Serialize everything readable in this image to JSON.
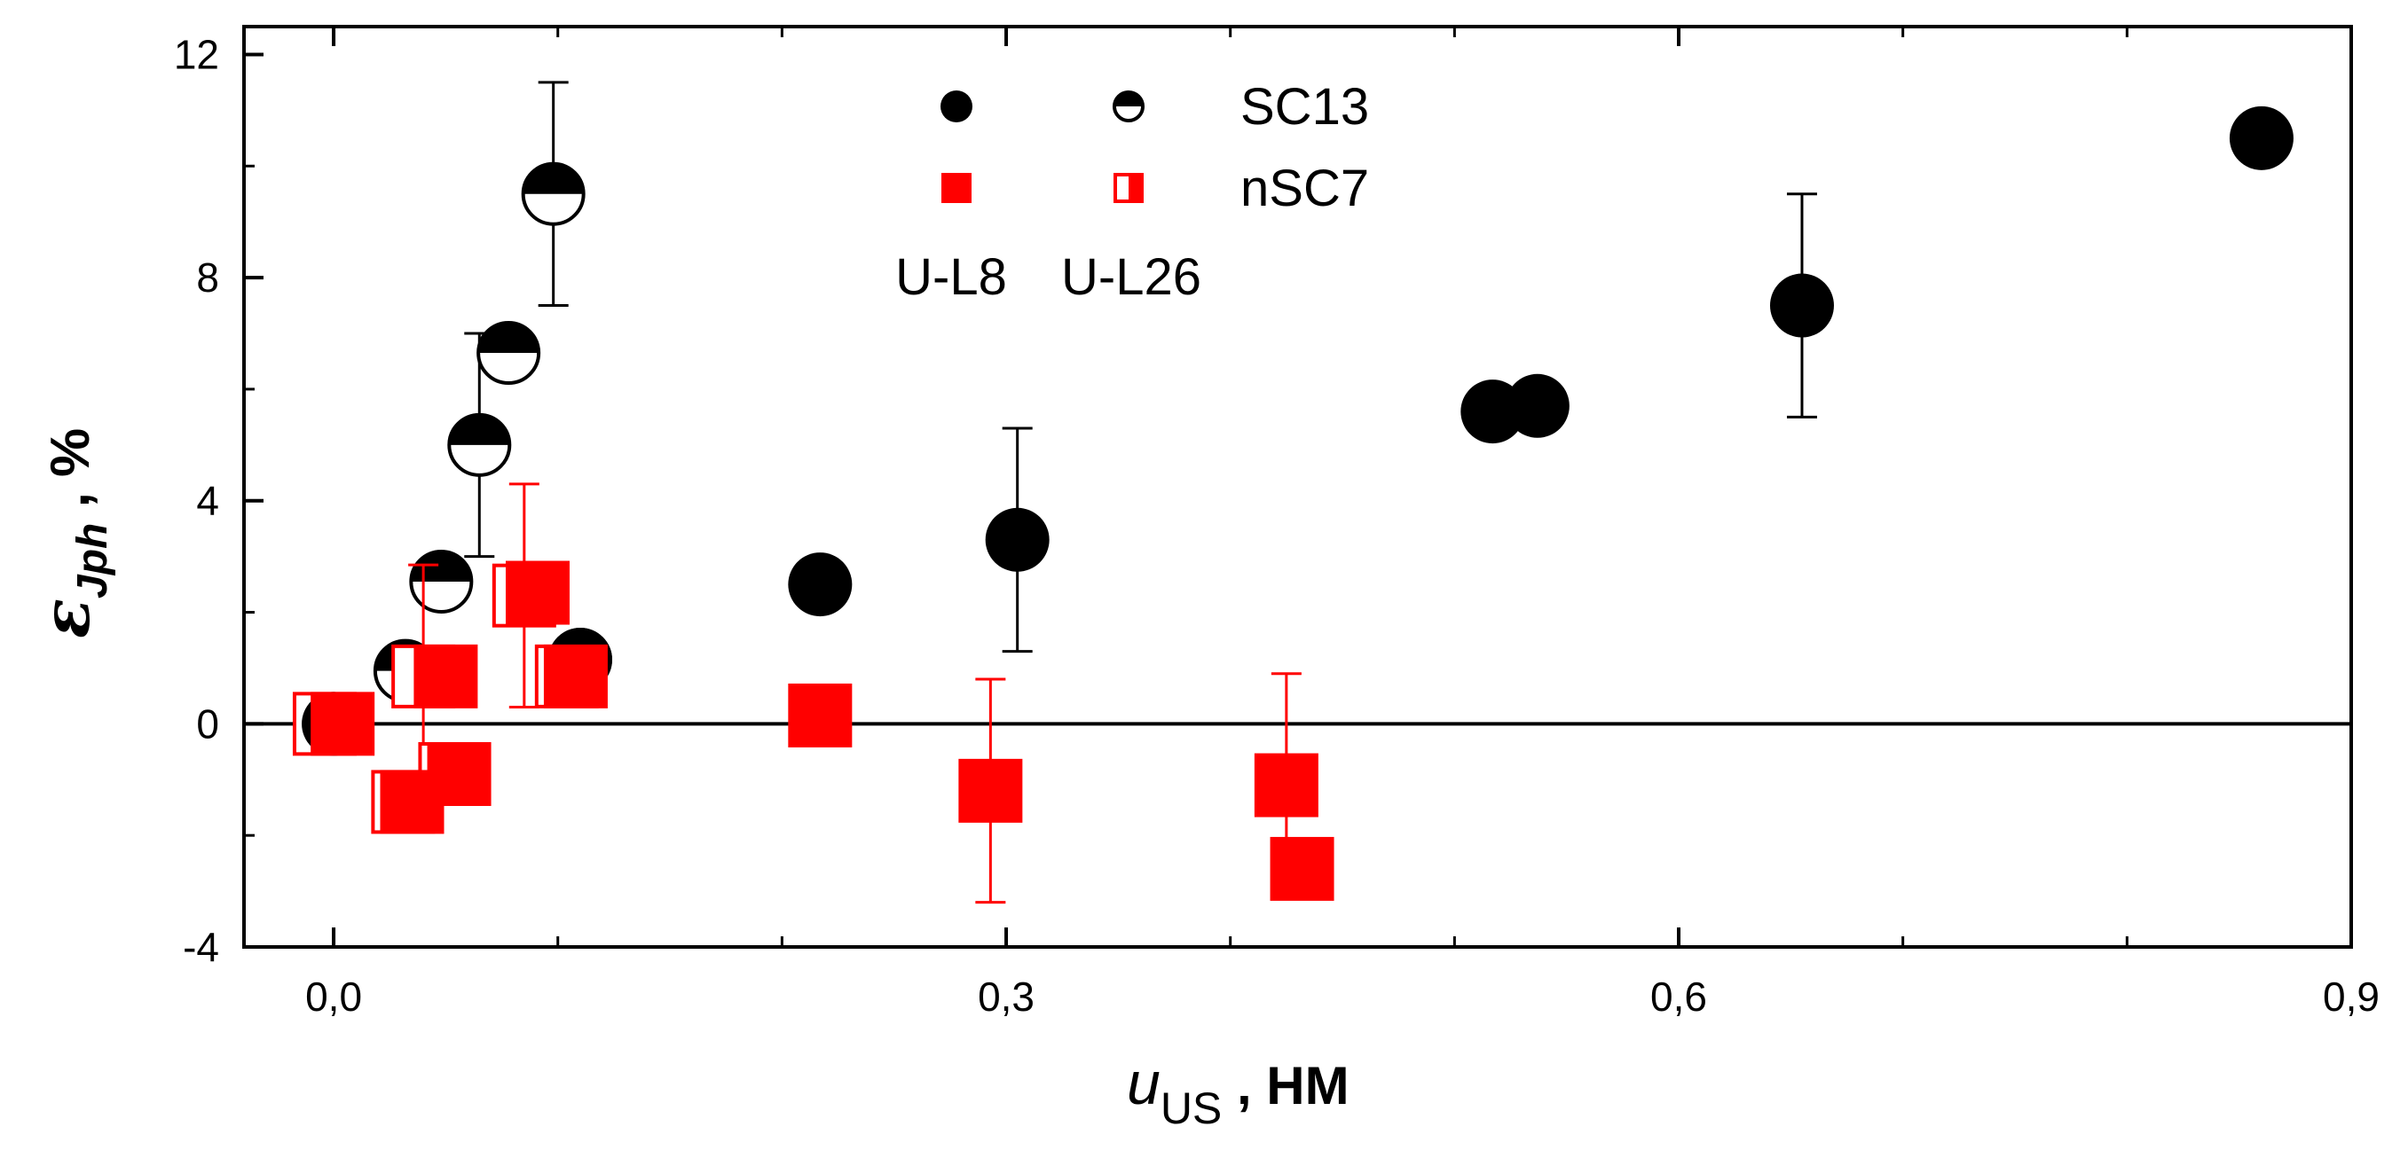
{
  "chart_data": {
    "type": "scatter",
    "x_axis": {
      "label_symbol": "u",
      "label_subscript": "US",
      "label_separator": ",",
      "label_unit": "НМ",
      "range": [
        -0.04,
        0.9
      ],
      "ticks": [
        0.0,
        0.3,
        0.6,
        0.9
      ],
      "tick_labels": [
        "0,0",
        "0,3",
        "0,6",
        "0,9"
      ],
      "minor_ticks": [
        0.1,
        0.2,
        0.4,
        0.5,
        0.7,
        0.8
      ]
    },
    "y_axis": {
      "label_symbol": "ε",
      "label_subscript": "Jph",
      "label_separator": ",",
      "label_unit": "%",
      "range": [
        -4,
        12.5
      ],
      "ticks": [
        -4,
        0,
        4,
        8,
        12
      ],
      "tick_labels": [
        "-4",
        "0",
        "4",
        "8",
        "12"
      ],
      "minor_ticks": [
        -2,
        2,
        6,
        10
      ]
    },
    "reference_line_y": 0,
    "legend": {
      "rows": [
        {
          "label": "SC13",
          "color": "#000000",
          "kind": "circle"
        },
        {
          "label": "nSC7",
          "color": "#ff0000",
          "kind": "square"
        }
      ],
      "column_labels": [
        "U-L8",
        "U-L26"
      ]
    },
    "series": [
      {
        "name": "SC13 U-L8",
        "marker": "circle-filled",
        "color": "#000000",
        "points": [
          {
            "x": 0.0,
            "y": 0.0
          },
          {
            "x": 0.11,
            "y": 1.15
          },
          {
            "x": 0.217,
            "y": 2.5
          },
          {
            "x": 0.305,
            "y": 3.3,
            "err": 2.0
          },
          {
            "x": 0.517,
            "y": 5.6
          },
          {
            "x": 0.537,
            "y": 5.7
          },
          {
            "x": 0.655,
            "y": 7.5,
            "err": 2.0
          },
          {
            "x": 0.86,
            "y": 10.5
          }
        ]
      },
      {
        "name": "SC13 U-L26",
        "marker": "circle-half",
        "color": "#000000",
        "points": [
          {
            "x": 0.0,
            "y": 0.0
          },
          {
            "x": 0.032,
            "y": 0.95
          },
          {
            "x": 0.048,
            "y": 2.55
          },
          {
            "x": 0.065,
            "y": 5.0,
            "err": 2.0
          },
          {
            "x": 0.078,
            "y": 6.65
          },
          {
            "x": 0.098,
            "y": 9.5,
            "err": 2.0
          },
          {
            "x": 0.11,
            "y": 1.15
          }
        ]
      },
      {
        "name": "nSC7 U-L8",
        "marker": "square-filled",
        "color": "#ff0000",
        "points": [
          {
            "x": 0.004,
            "y": 0.0
          },
          {
            "x": 0.035,
            "y": -1.4
          },
          {
            "x": 0.05,
            "y": 0.85
          },
          {
            "x": 0.056,
            "y": -0.9
          },
          {
            "x": 0.091,
            "y": 2.35
          },
          {
            "x": 0.108,
            "y": 0.85
          },
          {
            "x": 0.217,
            "y": 0.15
          },
          {
            "x": 0.293,
            "y": -1.2,
            "err": 2.0
          },
          {
            "x": 0.425,
            "y": -1.1,
            "err": 2.0
          },
          {
            "x": 0.432,
            "y": -2.6
          }
        ]
      },
      {
        "name": "nSC7 U-L26",
        "marker": "square-half",
        "color": "#ff0000",
        "points": [
          {
            "x": -0.004,
            "y": 0.0
          },
          {
            "x": 0.031,
            "y": -1.4
          },
          {
            "x": 0.04,
            "y": 0.85,
            "err": 2.0
          },
          {
            "x": 0.052,
            "y": -0.9
          },
          {
            "x": 0.085,
            "y": 2.3,
            "err": 2.0
          },
          {
            "x": 0.104,
            "y": 0.85
          }
        ]
      }
    ]
  }
}
